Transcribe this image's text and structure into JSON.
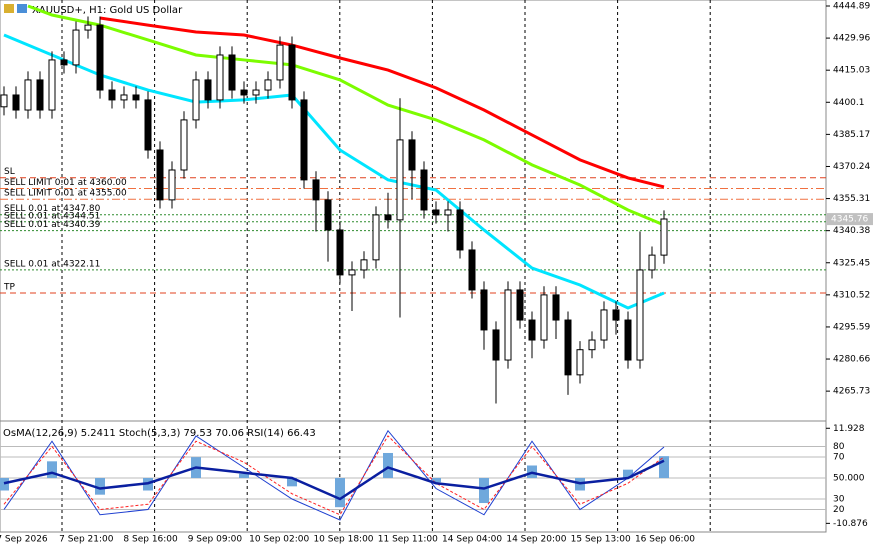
{
  "chart_data": [
    {
      "type": "candlestick",
      "title": "XAUUSD+, H1:  Gold US Dollar",
      "ylim": [
        4252.3,
        4447.68
      ],
      "yticks": [
        4444.89,
        4429.96,
        4415.03,
        4400.1,
        {
          "value": 4385.17,
          "label": "4385.17"
        },
        4370.24,
        4355.31,
        4340.38,
        4325.45,
        4310.52,
        4295.59,
        4280.66,
        4265.73
      ],
      "x_labels": [
        "7 Sep 2026",
        "7 Sep 21:00",
        "8 Sep 16:00",
        "9 Sep 09:00",
        "10 Sep 02:00",
        "10 Sep 18:00",
        "11 Sep 11:00",
        "14 Sep 04:00",
        "14 Sep 20:00",
        "15 Sep 13:00",
        "16 Sep 06:00"
      ],
      "open": [
        4398.0,
        4403.5,
        4396.5,
        4410.5,
        4396.5,
        4419.8,
        4417.5,
        4433.7,
        4436.0,
        4405.8,
        4401.2,
        4403.5,
        4401.2,
        4377.9,
        4354.7,
        4368.6,
        4391.9,
        4410.5,
        4401.2,
        4422.1,
        4405.8,
        4403.5,
        4405.8,
        4410.5,
        4426.7,
        4401.2,
        4364.0,
        4354.7,
        4340.7,
        4319.8,
        4322.1,
        4326.8,
        4347.7,
        4345.4,
        4382.6,
        4368.6,
        4350.0,
        4347.7,
        4350.0,
        4331.4,
        4312.8,
        4294.2,
        4280.2,
        4312.8,
        4298.8,
        4289.5,
        4310.5,
        4298.8,
        4273.3,
        4285.0,
        4289.5,
        4303.5,
        4298.8,
        4280.2,
        4322.1,
        4329.0
      ],
      "high": [
        4407.5,
        4407.5,
        4414.5,
        4414.5,
        4423.8,
        4423.8,
        4437.7,
        4440.0,
        4440.0,
        4409.8,
        4407.5,
        4407.5,
        4405.2,
        4381.9,
        4372.6,
        4395.9,
        4414.5,
        4414.5,
        4426.1,
        4426.1,
        4409.8,
        4409.8,
        4414.5,
        4430.7,
        4430.7,
        4405.2,
        4368.0,
        4358.7,
        4344.7,
        4326.1,
        4330.8,
        4351.7,
        4358.0,
        4402.0,
        4386.6,
        4372.6,
        4354.0,
        4354.0,
        4354.0,
        4335.4,
        4316.8,
        4298.2,
        4316.8,
        4316.8,
        4302.8,
        4314.5,
        4314.5,
        4302.8,
        4289.0,
        4293.5,
        4307.5,
        4307.5,
        4302.8,
        4340.0,
        4333.0,
        4349.8
      ],
      "low": [
        4394.0,
        4392.5,
        4392.5,
        4392.5,
        4392.5,
        4413.5,
        4413.5,
        4429.7,
        4401.8,
        4397.2,
        4397.2,
        4397.2,
        4373.9,
        4350.7,
        4350.7,
        4364.6,
        4387.9,
        4397.2,
        4397.2,
        4401.8,
        4399.5,
        4399.5,
        4401.8,
        4406.5,
        4397.2,
        4360.0,
        4340.0,
        4326.0,
        4315.8,
        4303.0,
        4318.1,
        4322.8,
        4341.4,
        4300.0,
        4355.0,
        4346.0,
        4343.7,
        4340.0,
        4327.4,
        4308.8,
        4285.0,
        4260.0,
        4276.2,
        4294.8,
        4281.0,
        4285.5,
        4290.0,
        4264.0,
        4269.3,
        4281.0,
        4285.5,
        4292.0,
        4276.2,
        4276.2,
        4318.1,
        4325.0
      ],
      "close": [
        4403.5,
        4396.5,
        4410.5,
        4396.5,
        4419.8,
        4417.5,
        4433.7,
        4436.0,
        4405.8,
        4401.2,
        4403.5,
        4401.2,
        4377.9,
        4354.7,
        4368.6,
        4391.9,
        4410.5,
        4401.2,
        4422.1,
        4405.8,
        4403.5,
        4405.8,
        4410.5,
        4426.7,
        4401.2,
        4364.0,
        4354.7,
        4340.7,
        4319.8,
        4322.1,
        4326.8,
        4347.7,
        4345.4,
        4382.6,
        4368.6,
        4350.0,
        4347.7,
        4350.0,
        4331.4,
        4312.8,
        4294.2,
        4280.2,
        4312.8,
        4298.8,
        4289.5,
        4310.5,
        4298.8,
        4273.3,
        4285.0,
        4289.5,
        4303.5,
        4298.8,
        4280.2,
        4322.1,
        4329.0,
        4345.8
      ],
      "series": [
        {
          "color": "#00e5ff",
          "x": [
            0,
            4,
            8,
            12,
            16,
            20,
            24,
            28,
            32,
            36,
            40,
            44,
            48,
            52,
            55
          ],
          "values": [
            4431.4,
            4422.1,
            4412.8,
            4405.8,
            4400.2,
            4401.2,
            4403.5,
            4377.9,
            4364.0,
            4359.3,
            4340.7,
            4323.0,
            4315.1,
            4304.4,
            4311.4
          ]
        },
        {
          "color": "#7cfc00",
          "x": [
            2,
            4,
            8,
            12,
            16,
            20,
            24,
            28,
            32,
            36,
            40,
            44,
            48,
            52,
            55
          ],
          "values": [
            4444.9,
            4440.7,
            4436.0,
            4429.1,
            4422.1,
            4419.8,
            4417.5,
            4410.5,
            4398.8,
            4391.9,
            4382.6,
            4371.0,
            4361.6,
            4350.0,
            4343.0
          ]
        },
        {
          "color": "#ff0000",
          "x": [
            8,
            12,
            16,
            20,
            24,
            28,
            32,
            36,
            40,
            44,
            48,
            52,
            55
          ],
          "values": [
            4439.3,
            4436.0,
            4432.8,
            4431.4,
            4426.7,
            4420.7,
            4415.1,
            4406.8,
            4396.5,
            4384.9,
            4373.3,
            4364.9,
            4360.7
          ]
        }
      ],
      "levels": [
        {
          "label": "SL",
          "price": 4365.0,
          "color": "#e0401f",
          "style": "dash"
        },
        {
          "label": "SELL LIMIT 0.01 at 4360.00",
          "price": 4360.0,
          "color": "#f07040",
          "style": "dashdot"
        },
        {
          "label": "SELL LIMIT 0.01 at 4355.00",
          "price": 4355.0,
          "color": "#f07040",
          "style": "dashdot"
        },
        {
          "label": "SELL 0.01 at 4347.80",
          "price": 4347.8,
          "color": "#2e8b2e",
          "style": "dot"
        },
        {
          "label": "SELL 0.01 at 4344.51",
          "price": 4344.51,
          "color": "#2e8b2e",
          "style": "dot"
        },
        {
          "label": "SELL 0.01 at 4340.39",
          "price": 4340.39,
          "color": "#2e8b2e",
          "style": "dot"
        },
        {
          "label": "SELL 0.01 at 4322.11",
          "price": 4322.11,
          "color": "#2e8b2e",
          "style": "dot"
        },
        {
          "label": "TP",
          "price": 4311.4,
          "color": "#e0401f",
          "style": "dash"
        }
      ],
      "current_price": 4345.76
    },
    {
      "type": "indicator",
      "title": "OsMA(12,26,9) 5.2411 Stoch(5,3,3) 79.53 70.06 RSI(14) 66.43",
      "ylim": [
        0.5,
        103.3
      ],
      "yticks": [
        80,
        70,
        {
          "value": 50,
          "label": "50.000"
        },
        30,
        20
      ],
      "y2lim": [
        -12.47,
        13.43
      ],
      "y2ticks": [
        11.928,
        -10.876
      ],
      "x": [
        0,
        4,
        8,
        12,
        16,
        20,
        24,
        28,
        32,
        36,
        40,
        44,
        48,
        52,
        55
      ],
      "series": [
        {
          "color": "#6fa8dc",
          "axis": "y2",
          "values": [
            -3,
            4,
            -4,
            -3,
            5,
            1,
            -2,
            -7,
            6,
            -1,
            -6,
            3,
            -3,
            2,
            5.24
          ]
        },
        {
          "color": "#1e3fd0",
          "values": [
            20,
            85,
            15,
            20,
            90,
            60,
            30,
            10,
            95,
            40,
            15,
            85,
            20,
            50,
            79.53
          ]
        },
        {
          "color": "#ff2020",
          "values": [
            25,
            80,
            20,
            25,
            85,
            65,
            35,
            15,
            90,
            45,
            20,
            80,
            25,
            45,
            70.06
          ]
        },
        {
          "color": "#0a1fa0",
          "values": [
            45,
            55,
            40,
            45,
            60,
            55,
            50,
            30,
            60,
            45,
            40,
            55,
            45,
            50,
            66.43
          ]
        }
      ]
    }
  ]
}
